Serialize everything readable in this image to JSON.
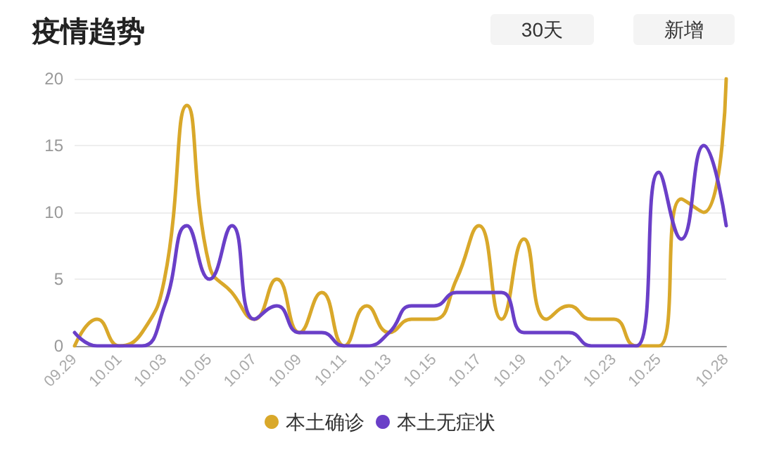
{
  "chart_data": {
    "type": "line",
    "title": "疫情趋势",
    "annotations": [
      "30天",
      "新增"
    ],
    "categories": [
      "09.29",
      null,
      "10.01",
      null,
      "10.03",
      null,
      "10.05",
      null,
      "10.07",
      null,
      "10.09",
      null,
      "10.11",
      null,
      "10.13",
      null,
      "10.15",
      null,
      "10.17",
      null,
      "10.19",
      null,
      "10.21",
      null,
      "10.23",
      null,
      "10.25",
      null,
      null,
      "10.28"
    ],
    "series": [
      {
        "name": "本土确诊",
        "color": "#d9a82a",
        "values": [
          0,
          2,
          0,
          1,
          5,
          18,
          6,
          4,
          2,
          5,
          1,
          4,
          0,
          3,
          1,
          2,
          2,
          5,
          9,
          2,
          8,
          2,
          3,
          2,
          2,
          0,
          0,
          11,
          10,
          20
        ]
      },
      {
        "name": "本土无症状",
        "color": "#6a3fc8",
        "values": [
          1,
          0,
          0,
          0,
          3,
          9,
          5,
          9,
          2,
          3,
          1,
          1,
          0,
          0,
          1,
          3,
          3,
          4,
          4,
          4,
          1,
          1,
          1,
          0,
          0,
          0,
          13,
          8,
          15,
          9
        ]
      }
    ],
    "ylim": [
      0,
      20
    ],
    "yticks": [
      0,
      5,
      10,
      15,
      20
    ],
    "grid": "y",
    "legend": "bottom",
    "marker": "none",
    "line_style": "solid"
  }
}
